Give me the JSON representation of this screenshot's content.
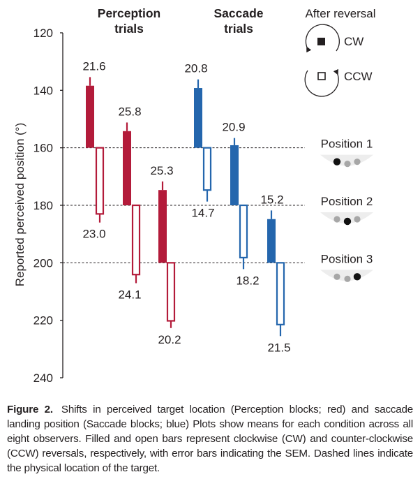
{
  "chart_data": {
    "type": "bar",
    "ylabel": "Reported perceived position (°)",
    "ylim": [
      120,
      240
    ],
    "yticks": [
      120,
      140,
      160,
      180,
      200,
      220,
      240
    ],
    "y_inverted": true,
    "groups": [
      {
        "title_line1": "Perception",
        "title_line2": "trials",
        "color": "#b31b3a"
      },
      {
        "title_line1": "Saccade",
        "title_line2": "trials",
        "color": "#2466ad"
      }
    ],
    "reference_lines": [
      160,
      180,
      200
    ],
    "bars": [
      {
        "group": 0,
        "kind": "CW",
        "base": 160,
        "value": 138.4,
        "error": 3,
        "label": "21.6"
      },
      {
        "group": 0,
        "kind": "CCW",
        "base": 160,
        "value": 183.0,
        "error": 3,
        "label": "23.0"
      },
      {
        "group": 0,
        "kind": "CW",
        "base": 180,
        "value": 154.2,
        "error": 3,
        "label": "25.8"
      },
      {
        "group": 0,
        "kind": "CCW",
        "base": 180,
        "value": 204.1,
        "error": 3,
        "label": "24.1"
      },
      {
        "group": 0,
        "kind": "CW",
        "base": 200,
        "value": 174.7,
        "error": 3,
        "label": "25.3"
      },
      {
        "group": 0,
        "kind": "CCW",
        "base": 200,
        "value": 220.2,
        "error": 2.5,
        "label": "20.2"
      },
      {
        "group": 1,
        "kind": "CW",
        "base": 160,
        "value": 139.2,
        "error": 3,
        "label": "20.8"
      },
      {
        "group": 1,
        "kind": "CCW",
        "base": 160,
        "value": 174.7,
        "error": 4,
        "label": "14.7"
      },
      {
        "group": 1,
        "kind": "CW",
        "base": 180,
        "value": 159.1,
        "error": 2.5,
        "label": "20.9"
      },
      {
        "group": 1,
        "kind": "CCW",
        "base": 180,
        "value": 198.2,
        "error": 4,
        "label": "18.2"
      },
      {
        "group": 1,
        "kind": "CW",
        "base": 200,
        "value": 184.8,
        "error": 3,
        "label": "15.2"
      },
      {
        "group": 1,
        "kind": "CCW",
        "base": 200,
        "value": 221.5,
        "error": 4,
        "label": "21.5"
      }
    ],
    "legend": {
      "title": "After reversal",
      "items": [
        {
          "symbol": "filled-square",
          "label": "CW"
        },
        {
          "symbol": "open-square",
          "label": "CCW"
        }
      ]
    },
    "positions": [
      {
        "label": "Position 1",
        "black_dot": 0
      },
      {
        "label": "Position 2",
        "black_dot": 1
      },
      {
        "label": "Position 3",
        "black_dot": 2
      }
    ]
  },
  "caption": {
    "label": "Figure 2.",
    "text": "Shifts in perceived target location (Perception blocks; red) and saccade landing position (Saccade blocks; blue) Plots show means for each condition across all eight observers. Filled and open bars represent clockwise (CW) and counter-clockwise (CCW) reversals, respectively, with error bars indicating the SEM. Dashed lines indicate the physical location of the target."
  }
}
